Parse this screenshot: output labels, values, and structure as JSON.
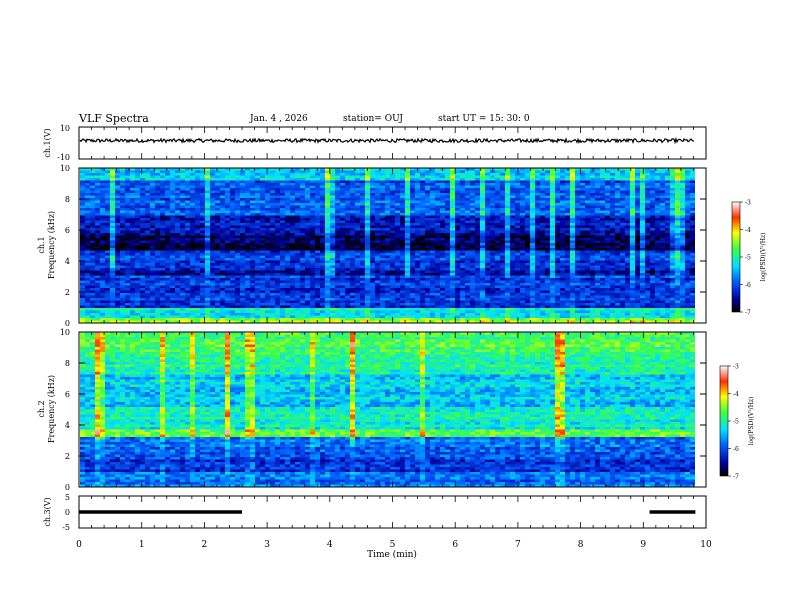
{
  "header": {
    "title": "VLF Spectra",
    "date": "Jan. 4 , 2026",
    "station": "station= OUJ",
    "start": "start  UT =   15: 30: 0"
  },
  "chart_data": [
    {
      "type": "line",
      "name": "ch1-voltage",
      "ylabel": "ch.1(V)",
      "yticks": [
        "10",
        "-10"
      ],
      "ylim": [
        -10,
        10
      ],
      "xlim": [
        0,
        10
      ],
      "description_level": 1.5
    },
    {
      "type": "heatmap",
      "name": "ch1-spectrogram",
      "ylabel": "Frequency (kHz)",
      "channel_label": "ch.1",
      "yticks": [
        "0",
        "2",
        "4",
        "6",
        "8",
        "10"
      ],
      "ylim": [
        0,
        10
      ],
      "xlim": [
        0,
        10
      ],
      "colorbar": {
        "label": "log(PSD)(V²/Hz)",
        "ticks": [
          "-3",
          "-4",
          "-5",
          "-6",
          "-7"
        ],
        "range": [
          -7,
          -3
        ]
      }
    },
    {
      "type": "heatmap",
      "name": "ch2-spectrogram",
      "ylabel": "Frequency (kHz)",
      "channel_label": "ch.2",
      "yticks": [
        "0",
        "2",
        "4",
        "6",
        "8",
        "10"
      ],
      "ylim": [
        0,
        10
      ],
      "xlim": [
        0,
        10
      ],
      "colorbar": {
        "label": "log(PSD)(V²/Hz)",
        "ticks": [
          "-3",
          "-4",
          "-5",
          "-6",
          "-7"
        ],
        "range": [
          -7,
          -3
        ]
      }
    },
    {
      "type": "line",
      "name": "ch3-voltage",
      "ylabel": "ch.3(V)",
      "yticks": [
        "5",
        "0",
        "-5"
      ],
      "ylim": [
        -5,
        5
      ],
      "xlim": [
        0,
        10
      ],
      "segments": [
        {
          "x": [
            0,
            2.6
          ],
          "y": 0
        },
        {
          "x": [
            9.1,
            9.83
          ],
          "y": 0
        }
      ]
    }
  ],
  "xaxis": {
    "label": "Time (min)",
    "ticks": [
      "0",
      "1",
      "2",
      "3",
      "4",
      "5",
      "6",
      "7",
      "8",
      "9",
      "10"
    ]
  }
}
